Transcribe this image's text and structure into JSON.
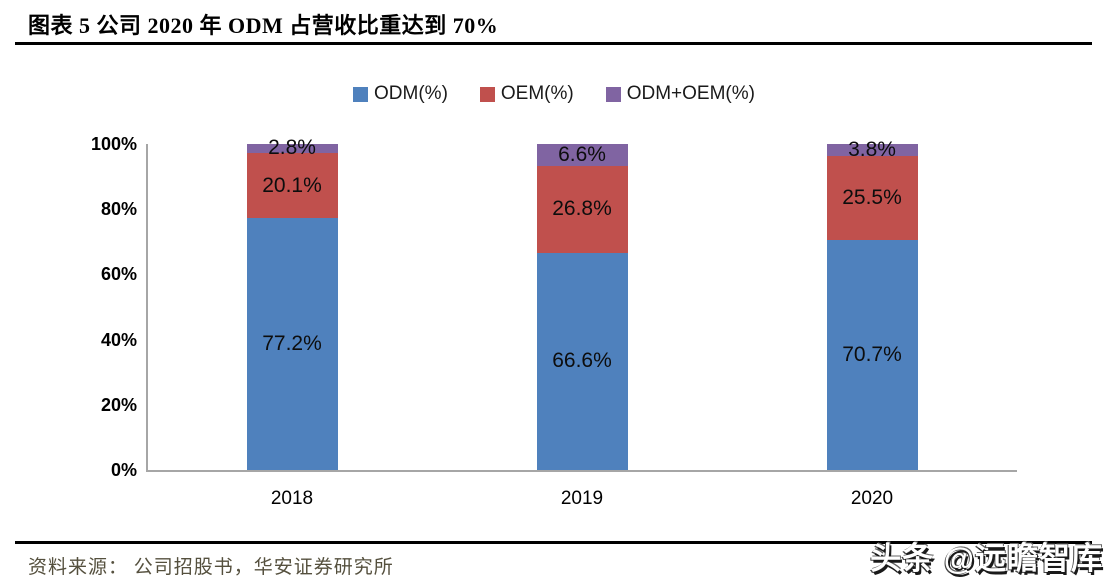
{
  "header": {
    "title": "图表 5 公司 2020 年 ODM 占营收比重达到 70%"
  },
  "chart_data": {
    "type": "bar",
    "stacked": true,
    "categories": [
      "2018",
      "2019",
      "2020"
    ],
    "series": [
      {
        "name": "ODM(%)",
        "color": "#4f81bd",
        "values": [
          77.2,
          66.6,
          70.7
        ]
      },
      {
        "name": "OEM(%)",
        "color": "#c0504d",
        "values": [
          20.1,
          26.8,
          25.5
        ]
      },
      {
        "name": "ODM+OEM(%)",
        "color": "#8064a2",
        "values": [
          2.8,
          6.6,
          3.8
        ]
      }
    ],
    "data_labels": [
      [
        "77.2%",
        "66.6%",
        "70.7%"
      ],
      [
        "20.1%",
        "26.8%",
        "25.5%"
      ],
      [
        "2.8%",
        "6.6%",
        "3.8%"
      ]
    ],
    "yticks": [
      "0%",
      "20%",
      "40%",
      "60%",
      "80%",
      "100%"
    ],
    "ylim": [
      0,
      100
    ],
    "grid": false,
    "legend_position": "top",
    "axis_color": "#a6a6a6"
  },
  "footer": {
    "source": "资料来源： 公司招股书，华安证券研究所",
    "watermark": "头条 @远瞻智库"
  }
}
